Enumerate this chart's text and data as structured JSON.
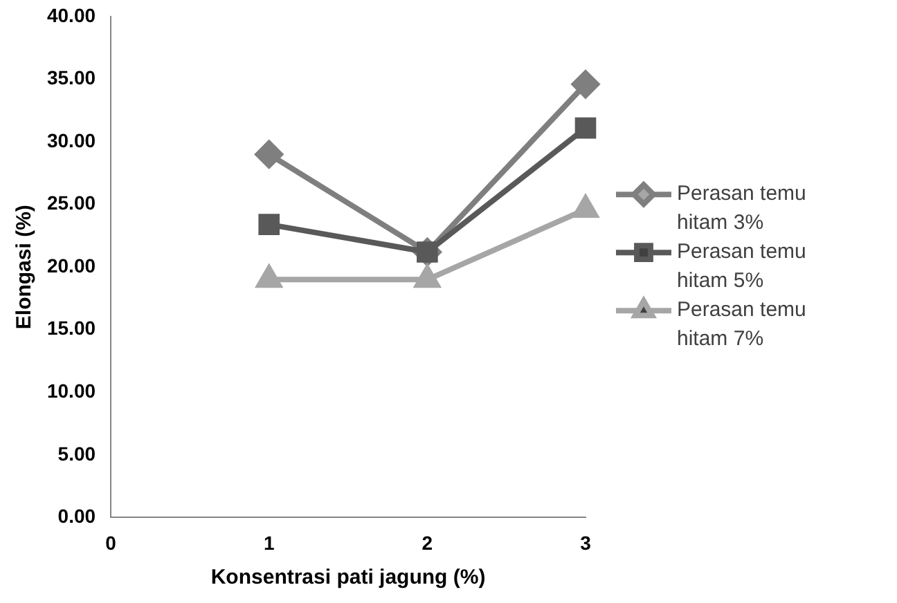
{
  "chart_data": {
    "type": "line",
    "xlabel": "Konsentrasi pati jagung (%)",
    "ylabel": "Elongasi (%)",
    "x": [
      1,
      2,
      3
    ],
    "series": [
      {
        "name": "Perasan temu hitam 3%",
        "color": "#7f7f7f",
        "marker": "diamond",
        "values": [
          29.0,
          21.2,
          34.6
        ]
      },
      {
        "name": "Perasan temu hitam 5%",
        "color": "#595959",
        "marker": "square",
        "values": [
          23.4,
          21.2,
          31.1
        ]
      },
      {
        "name": "Perasan temu hitam 7%",
        "color": "#a6a6a6",
        "marker": "triangle",
        "values": [
          19.0,
          19.0,
          24.6
        ]
      }
    ],
    "xlim": [
      0,
      3
    ],
    "xticks": [
      0,
      1,
      2,
      3
    ],
    "ylim": [
      0,
      40
    ],
    "yticks": [
      {
        "value": 0,
        "label": "0.00"
      },
      {
        "value": 5,
        "label": "5.00"
      },
      {
        "value": 10,
        "label": "10.00"
      },
      {
        "value": 15,
        "label": "15.00"
      },
      {
        "value": 20,
        "label": "20.00"
      },
      {
        "value": 25,
        "label": "25.00"
      },
      {
        "value": 30,
        "label": "30.00"
      },
      {
        "value": 35,
        "label": "35.00"
      },
      {
        "value": 40,
        "label": "40.00"
      }
    ],
    "grid": false,
    "legend": "right",
    "line_style": "solid"
  }
}
